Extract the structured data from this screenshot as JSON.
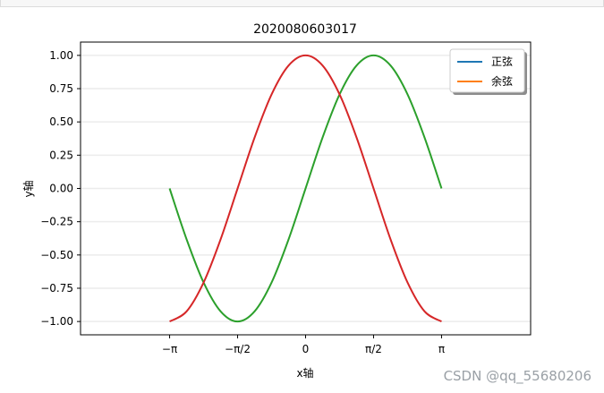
{
  "watermark": "CSDN @qq_55680206",
  "chart_data": {
    "type": "line",
    "title": "2020080603017",
    "xlabel": "x轴",
    "ylabel": "y轴",
    "xlim": [
      -5.2,
      5.2
    ],
    "ylim": [
      -1.1,
      1.1
    ],
    "x_ticks": [
      {
        "value": -3.14159,
        "label": "−π"
      },
      {
        "value": -1.5708,
        "label": "−π/2"
      },
      {
        "value": 0,
        "label": "0"
      },
      {
        "value": 1.5708,
        "label": "π/2"
      },
      {
        "value": 3.14159,
        "label": "π"
      }
    ],
    "y_ticks": [
      {
        "value": 1.0,
        "label": "1.00"
      },
      {
        "value": 0.75,
        "label": "0.75"
      },
      {
        "value": 0.5,
        "label": "0.50"
      },
      {
        "value": 0.25,
        "label": "0.25"
      },
      {
        "value": 0.0,
        "label": "0.00"
      },
      {
        "value": -0.25,
        "label": "−0.25"
      },
      {
        "value": -0.5,
        "label": "−0.50"
      },
      {
        "value": -0.75,
        "label": "−0.75"
      },
      {
        "value": -1.0,
        "label": "−1.00"
      }
    ],
    "grid": {
      "y": true,
      "x": false,
      "color": "#ececec"
    },
    "legend": {
      "placement": "top-right",
      "entries": [
        {
          "name": "正弦",
          "color": "#1f77b4"
        },
        {
          "name": "余弦",
          "color": "#ff7f0e"
        }
      ]
    },
    "series": [
      {
        "color": "#2ca02c",
        "x": [
          -3.14159,
          -2.74889,
          -2.35619,
          -1.9635,
          -1.5708,
          -1.1781,
          -0.7854,
          -0.3927,
          0,
          0.3927,
          0.7854,
          1.1781,
          1.5708,
          1.9635,
          2.35619,
          2.74889,
          3.14159
        ],
        "y": [
          0.0,
          -0.3827,
          -0.7071,
          -0.9239,
          -1.0,
          -0.9239,
          -0.7071,
          -0.3827,
          0.0,
          0.3827,
          0.7071,
          0.9239,
          1.0,
          0.9239,
          0.7071,
          0.3827,
          0.0
        ]
      },
      {
        "color": "#d62728",
        "x": [
          -3.14159,
          -2.74889,
          -2.35619,
          -1.9635,
          -1.5708,
          -1.1781,
          -0.7854,
          -0.3927,
          0,
          0.3927,
          0.7854,
          1.1781,
          1.5708,
          1.9635,
          2.35619,
          2.74889,
          3.14159
        ],
        "y": [
          -1.0,
          -0.9239,
          -0.7071,
          -0.3827,
          0.0,
          0.3827,
          0.7071,
          0.9239,
          1.0,
          0.9239,
          0.7071,
          0.3827,
          0.0,
          -0.3827,
          -0.7071,
          -0.9239,
          -1.0
        ]
      }
    ]
  }
}
